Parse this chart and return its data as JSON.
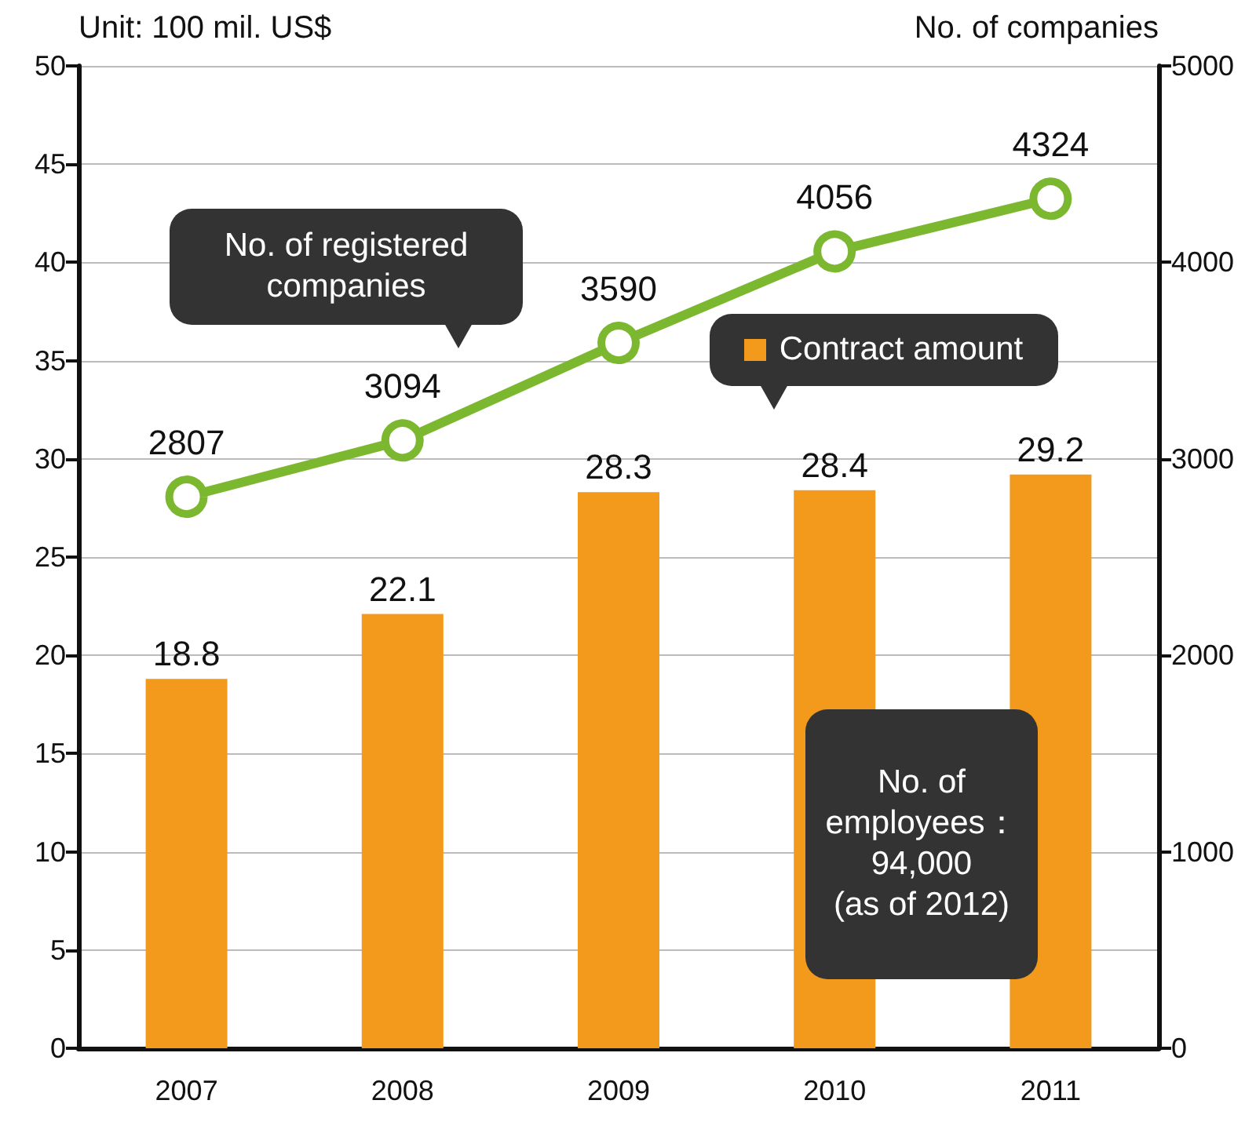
{
  "chart_data": {
    "type": "bar",
    "ylabel": "Unit: 100 mil. US$",
    "y2label": "No. of companies",
    "categories": [
      "2007",
      "2008",
      "2009",
      "2010",
      "2011"
    ],
    "series": [
      {
        "name": "Contract amount",
        "color": "#f39a1c",
        "values": [
          18.8,
          22.1,
          28.3,
          28.4,
          29.2
        ]
      },
      {
        "name": "No. of registered companies",
        "type": "line",
        "axis": "y2",
        "color": "#7cb82f",
        "values": [
          2807,
          3094,
          3590,
          4056,
          4324
        ]
      }
    ],
    "ylim": [
      0,
      50
    ],
    "yticks": [
      0,
      5,
      10,
      15,
      20,
      25,
      30,
      35,
      40,
      45,
      50
    ],
    "y2lim": [
      0,
      5000
    ],
    "y2ticks": [
      0,
      1000,
      2000,
      3000,
      4000,
      5000
    ],
    "annotations": [
      "No. of employees：\n94,000\n(as of 2012)"
    ],
    "data_labels": true,
    "grid": "y",
    "legend": "top right",
    "marker": "circle",
    "line_style": "solid"
  }
}
